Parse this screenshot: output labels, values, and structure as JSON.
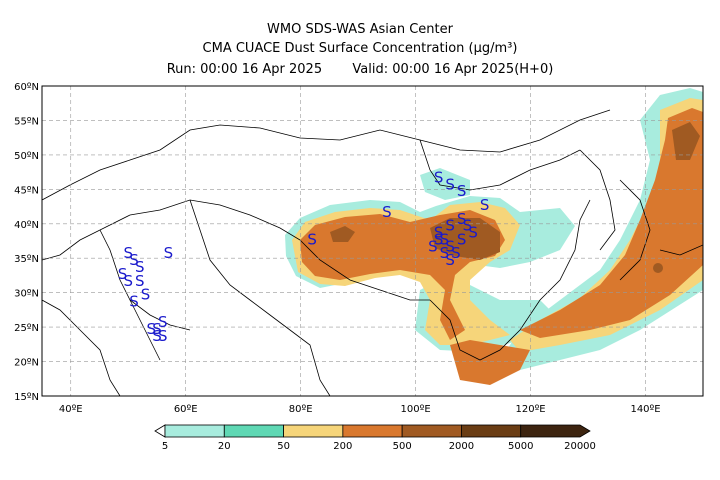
{
  "header": {
    "line1": "WMO SDS-WAS Asian Center",
    "line2": "CMA CUACE Dust Surface Concentration (µg/m³)",
    "run": "Run: 00:00 16 Apr 2025",
    "valid": "Valid: 00:00 16 Apr 2025(H+0)"
  },
  "map": {
    "lat_labels": [
      "60ºN",
      "55ºN",
      "50ºN",
      "45ºN",
      "40ºN",
      "35ºN",
      "30ºN",
      "25ºN",
      "20ºN",
      "15ºN"
    ],
    "lon_labels": [
      "40ºE",
      "60ºE",
      "80ºE",
      "100ºE",
      "120ºE",
      "140ºE"
    ],
    "storm_marker": "S"
  },
  "colorbar": {
    "ticks": [
      "5",
      "20",
      "50",
      "200",
      "500",
      "2000",
      "5000",
      "20000"
    ],
    "colors": [
      "#a8ecde",
      "#5fd8b4",
      "#f6d57a",
      "#d9782e",
      "#a05a22",
      "#6a3d14",
      "#3d2410"
    ]
  },
  "colors": {
    "dust_lowest": "#a8ecde",
    "dust_low": "#5fd8b4",
    "dust_mid": "#f6d57a",
    "dust_high": "#d9782e",
    "dust_very_high": "#a05a22",
    "storm_symbol": "#1a1acc"
  }
}
